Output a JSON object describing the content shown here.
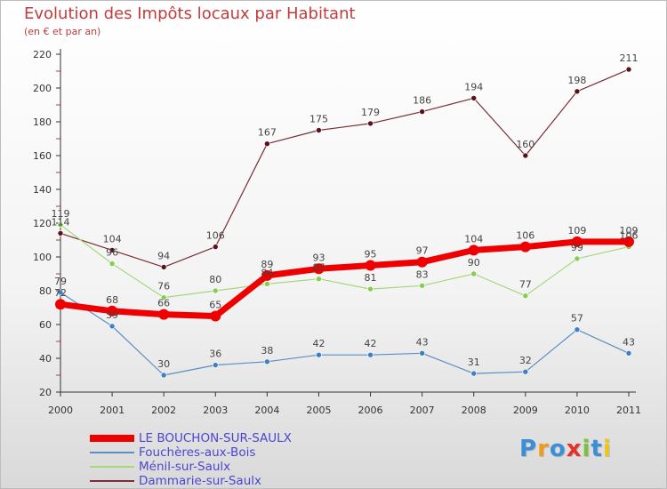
{
  "chart_data": {
    "type": "line",
    "title": "Evolution des Impôts locaux par Habitant",
    "subtitle": "(en € et par an)",
    "xlabel": "",
    "ylabel": "",
    "x": [
      "2000",
      "2001",
      "2002",
      "2003",
      "2004",
      "2005",
      "2006",
      "2007",
      "2008",
      "2009",
      "2010",
      "2011"
    ],
    "ylim": [
      20,
      220
    ],
    "yticks": [
      20,
      40,
      60,
      80,
      100,
      120,
      140,
      160,
      180,
      200,
      220
    ],
    "series": [
      {
        "name": "Dammarie-sur-Saulx",
        "color": "#7a2e36",
        "marker": "#5a1218",
        "width": 1.2,
        "values": [
          114,
          104,
          94,
          106,
          167,
          175,
          179,
          186,
          194,
          160,
          198,
          211
        ]
      },
      {
        "name": "Ménil-sur-Saulx",
        "color": "#a6d87a",
        "marker": "#86cc4e",
        "width": 1.2,
        "values": [
          119,
          96,
          76,
          80,
          84,
          87,
          81,
          83,
          90,
          77,
          99,
          106
        ]
      },
      {
        "name": "Fouchères-aux-Bois",
        "color": "#5b8ec2",
        "marker": "#3d7fc4",
        "width": 1.2,
        "values": [
          79,
          59,
          30,
          36,
          38,
          42,
          42,
          43,
          31,
          32,
          57,
          43
        ]
      },
      {
        "name": "LE BOUCHON-SUR-SAULX",
        "color": "#ee0000",
        "marker": "#ee0000",
        "width": 7,
        "values": [
          72,
          68,
          66,
          65,
          89,
          93,
          95,
          97,
          104,
          106,
          109,
          109
        ]
      }
    ],
    "legend": {
      "placement": "bottom-left",
      "order": [
        "LE BOUCHON-SUR-SAULX",
        "Fouchères-aux-Bois",
        "Ménil-sur-Saulx",
        "Dammarie-sur-Saulx"
      ]
    }
  },
  "logo": {
    "text": "Proxiti",
    "letter_colors": [
      "#3a8fd6",
      "#f29a1c",
      "#3a8fd6",
      "#e6302a",
      "#7cc242",
      "#3a8fd6",
      "#f0c419"
    ]
  }
}
